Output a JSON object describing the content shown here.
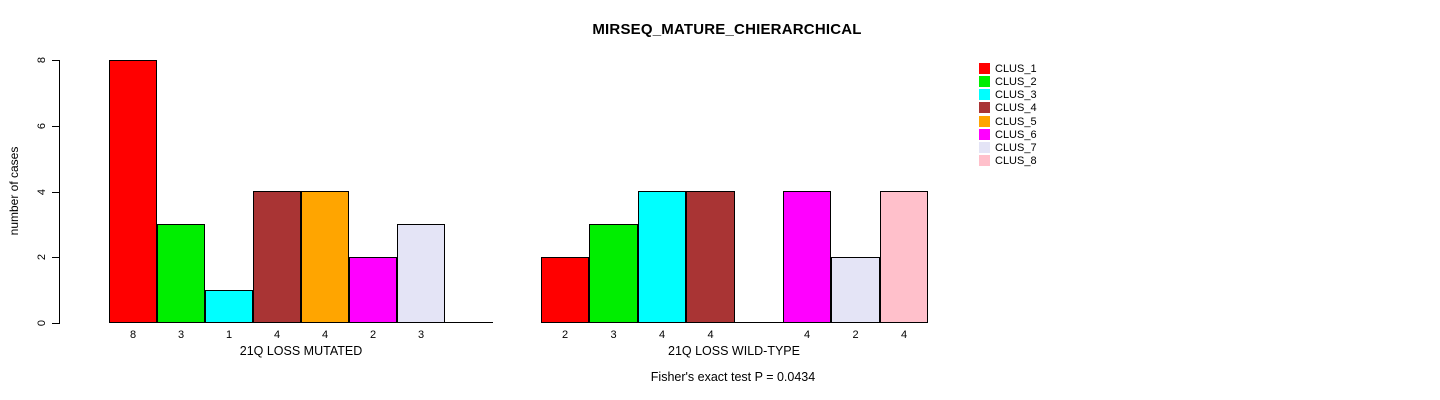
{
  "chart_data": {
    "type": "bar",
    "title": "MIRSEQ_MATURE_CHIERARCHICAL",
    "ylabel": "number of cases",
    "ylim": [
      0,
      8
    ],
    "yticks": [
      0,
      2,
      4,
      6,
      8
    ],
    "grid": false,
    "legend_position": "right",
    "annotation": "Fisher's exact test P = 0.0434",
    "series": [
      {
        "name": "CLUS_1",
        "color": "#FF0000",
        "values": [
          8,
          2
        ]
      },
      {
        "name": "CLUS_2",
        "color": "#00EE00",
        "values": [
          3,
          3
        ]
      },
      {
        "name": "CLUS_3",
        "color": "#00FFFF",
        "values": [
          1,
          4
        ]
      },
      {
        "name": "CLUS_4",
        "color": "#A93434",
        "values": [
          4,
          4
        ]
      },
      {
        "name": "CLUS_5",
        "color": "#FFA500",
        "values": [
          4,
          0
        ]
      },
      {
        "name": "CLUS_6",
        "color": "#FF00FF",
        "values": [
          2,
          4
        ]
      },
      {
        "name": "CLUS_7",
        "color": "#E4E4F6",
        "values": [
          3,
          2
        ]
      },
      {
        "name": "CLUS_8",
        "color": "#FFC0CB",
        "values": [
          0,
          4
        ]
      }
    ],
    "groups": [
      {
        "xlabel": "21Q LOSS MUTATED",
        "values": [
          8,
          3,
          1,
          4,
          4,
          2,
          3,
          0
        ],
        "bar_labels": [
          "8",
          "3",
          "1",
          "4",
          "4",
          "2",
          "3",
          ""
        ]
      },
      {
        "xlabel": "21Q LOSS WILD-TYPE",
        "values": [
          2,
          3,
          4,
          4,
          0,
          4,
          2,
          4
        ],
        "bar_labels": [
          "2",
          "3",
          "4",
          "4",
          "",
          "4",
          "2",
          "4"
        ]
      }
    ]
  }
}
